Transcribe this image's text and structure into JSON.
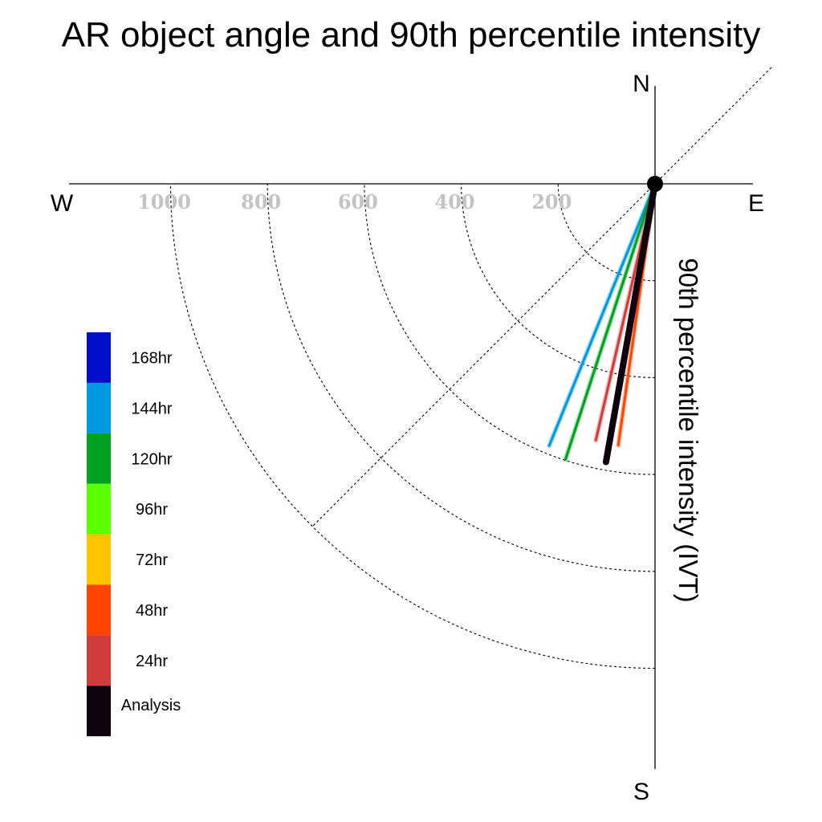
{
  "title": "AR object angle and 90th percentile intensity",
  "compass": {
    "n": "N",
    "e": "E",
    "s": "S",
    "w": "W"
  },
  "axis_label": "90th percentile intensity (IVT)",
  "colors": {
    "168hr": "#0010c8",
    "144hr": "#0098e0",
    "120hr": "#00a020",
    "96hr": "#5aff00",
    "72hr": "#ffc400",
    "48hr": "#ff4400",
    "24hr": "#d03c3c",
    "Analysis": "#0e030e",
    "tick_text": "#c3c3c3",
    "grid": "#000000"
  },
  "chart_data": {
    "type": "polar-vector",
    "title": "AR object angle and 90th percentile intensity",
    "radial_label": "90th percentile intensity (IVT)",
    "radial_ticks": [
      "200",
      "400",
      "600",
      "800",
      "1000"
    ],
    "radial_tick_values": [
      200,
      400,
      600,
      800,
      1000
    ],
    "radial_max": 1000,
    "diagonal_reference_angle_deg": 45,
    "direction_labels": [
      "N",
      "E",
      "S",
      "W"
    ],
    "legend": [
      "168hr",
      "144hr",
      "120hr",
      "96hr",
      "72hr",
      "48hr",
      "24hr",
      "Analysis"
    ],
    "legend_placement": "left",
    "series": [
      {
        "name": "144hr",
        "angle_deg_from_north_clockwise": 202,
        "intensity": 583
      },
      {
        "name": "120hr",
        "angle_deg_from_north_clockwise": 198,
        "intensity": 598
      },
      {
        "name": "24hr",
        "angle_deg_from_north_clockwise": 193,
        "intensity": 543
      },
      {
        "name": "48hr",
        "angle_deg_from_north_clockwise": 188,
        "intensity": 545
      },
      {
        "name": "Analysis",
        "angle_deg_from_north_clockwise": 190,
        "intensity": 583
      }
    ]
  }
}
